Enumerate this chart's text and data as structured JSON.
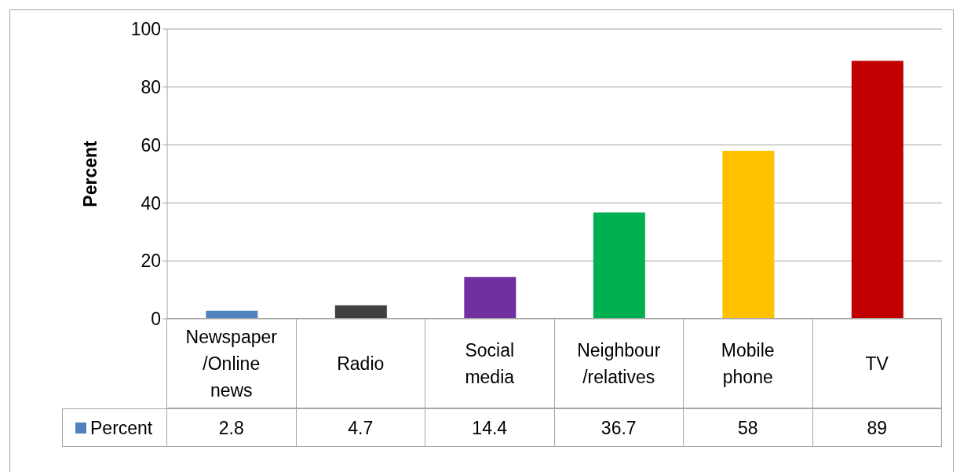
{
  "chart_data": {
    "type": "bar",
    "ylabel": "Percent",
    "categories": [
      "Newspaper /Online news",
      "Radio",
      "Social media",
      "Neighbour /relatives",
      "Mobile phone",
      "TV"
    ],
    "series": [
      {
        "name": "Percent",
        "color": "#4f81bd",
        "colors": [
          "#4f81bd",
          "#404040",
          "#7030a0",
          "#00b050",
          "#ffc000",
          "#c00000"
        ],
        "values": [
          2.8,
          4.7,
          14.4,
          36.7,
          58,
          89
        ]
      }
    ],
    "ylim": [
      0,
      100
    ],
    "yticks": [
      0,
      20,
      40,
      60,
      80,
      100
    ],
    "grid": "y",
    "legend": "bottom",
    "data_labels": true
  }
}
